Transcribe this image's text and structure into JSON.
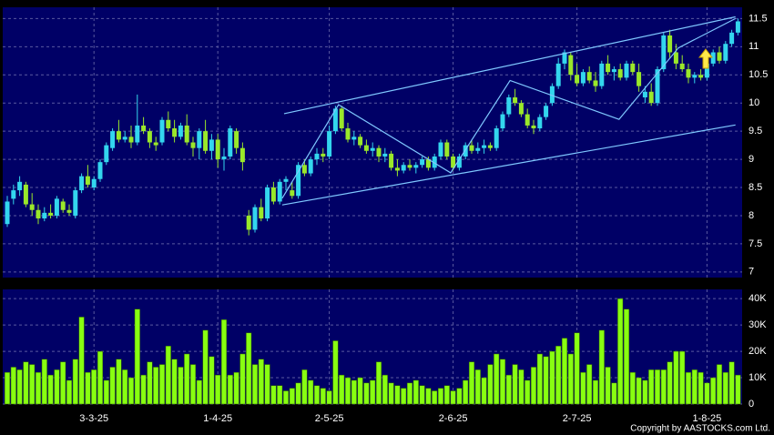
{
  "chart_data": {
    "type": "candlestick",
    "categories": [
      null,
      null,
      null,
      null,
      null,
      null,
      null,
      null,
      null,
      null,
      null,
      null,
      null,
      null,
      "3-3-25",
      null,
      null,
      null,
      null,
      null,
      null,
      null,
      null,
      null,
      null,
      null,
      null,
      null,
      null,
      null,
      null,
      null,
      null,
      null,
      "1-4-25",
      null,
      null,
      null,
      null,
      null,
      null,
      null,
      null,
      null,
      null,
      null,
      null,
      null,
      null,
      null,
      null,
      null,
      "2-5-25",
      null,
      null,
      null,
      null,
      null,
      null,
      null,
      null,
      null,
      null,
      null,
      null,
      null,
      null,
      null,
      null,
      null,
      null,
      null,
      "2-6-25",
      null,
      null,
      null,
      null,
      null,
      null,
      null,
      null,
      null,
      null,
      null,
      null,
      null,
      null,
      null,
      null,
      null,
      null,
      null,
      "2-7-25",
      null,
      null,
      null,
      null,
      null,
      null,
      null,
      null,
      null,
      null,
      null,
      null,
      null,
      null,
      null,
      null,
      null,
      null,
      null,
      null,
      "1-8-25",
      null,
      null,
      null,
      null,
      null
    ],
    "open": [
      7.85,
      8.3,
      8.45,
      8.55,
      8.2,
      8.1,
      7.95,
      8.05,
      8.0,
      8.25,
      8.1,
      8.0,
      8.45,
      8.7,
      8.5,
      8.65,
      8.95,
      9.2,
      9.5,
      9.35,
      9.4,
      9.3,
      9.6,
      9.5,
      9.3,
      9.3,
      9.7,
      9.55,
      9.4,
      9.6,
      9.3,
      9.2,
      9.5,
      9.15,
      9.35,
      9.0,
      9.05,
      9.5,
      9.2,
      8.0,
      7.75,
      8.15,
      7.95,
      8.5,
      8.25,
      8.6,
      8.45,
      8.35,
      8.9,
      8.75,
      9.0,
      9.1,
      9.05,
      9.5,
      9.9,
      9.55,
      9.35,
      9.4,
      9.25,
      9.15,
      9.2,
      9.05,
      9.1,
      8.85,
      8.8,
      8.9,
      8.85,
      8.9,
      9.0,
      8.85,
      9.05,
      9.3,
      9.05,
      8.85,
      9.05,
      9.25,
      9.15,
      9.2,
      9.25,
      9.2,
      9.55,
      9.8,
      10.1,
      10.0,
      9.8,
      9.6,
      9.55,
      9.75,
      10.0,
      10.3,
      10.7,
      10.85,
      10.5,
      10.35,
      10.55,
      10.4,
      10.3,
      10.7,
      10.55,
      10.6,
      10.45,
      10.7,
      10.55,
      10.1,
      10.2,
      10.0,
      10.6,
      11.2,
      10.9,
      10.7,
      10.6,
      10.45,
      10.5,
      10.45,
      10.7,
      10.9,
      10.75,
      11.05,
      11.25
    ],
    "high": [
      8.35,
      8.55,
      8.7,
      8.6,
      8.4,
      8.2,
      8.15,
      8.2,
      8.35,
      8.3,
      8.2,
      8.5,
      8.75,
      8.9,
      8.7,
      9.0,
      9.3,
      9.55,
      9.7,
      9.5,
      9.6,
      10.15,
      9.75,
      9.55,
      9.4,
      9.75,
      9.85,
      9.7,
      9.65,
      9.8,
      9.4,
      9.55,
      9.7,
      9.45,
      9.45,
      9.2,
      9.6,
      9.55,
      9.3,
      8.1,
      8.2,
      8.3,
      8.55,
      8.6,
      8.65,
      8.7,
      8.6,
      8.95,
      9.0,
      9.05,
      9.2,
      9.2,
      9.6,
      9.95,
      9.95,
      9.65,
      9.5,
      9.45,
      9.35,
      9.3,
      9.25,
      9.2,
      9.15,
      9.0,
      8.95,
      9.0,
      8.95,
      9.05,
      9.05,
      9.1,
      9.35,
      9.35,
      9.1,
      9.1,
      9.3,
      9.35,
      9.3,
      9.35,
      9.3,
      9.6,
      9.85,
      10.15,
      10.25,
      10.05,
      9.9,
      9.7,
      9.8,
      10.0,
      10.35,
      10.8,
      10.95,
      10.9,
      10.7,
      10.6,
      10.65,
      10.55,
      10.75,
      10.85,
      10.65,
      10.7,
      10.75,
      10.75,
      10.7,
      10.3,
      10.35,
      10.65,
      11.25,
      11.3,
      11.05,
      10.85,
      10.7,
      10.55,
      10.6,
      10.75,
      10.95,
      11.0,
      11.1,
      11.3,
      11.5
    ],
    "low": [
      7.8,
      8.2,
      8.35,
      8.15,
      8.0,
      7.85,
      7.9,
      7.95,
      7.95,
      8.05,
      8.0,
      7.95,
      8.4,
      8.5,
      8.45,
      8.6,
      8.9,
      9.15,
      9.3,
      9.3,
      9.2,
      9.25,
      9.45,
      9.2,
      9.15,
      9.25,
      9.5,
      9.3,
      9.35,
      9.25,
      9.05,
      9.0,
      9.1,
      9.0,
      8.85,
      8.8,
      9.0,
      9.1,
      8.8,
      7.65,
      7.7,
      7.9,
      7.9,
      8.2,
      8.2,
      8.45,
      8.3,
      8.3,
      8.7,
      8.7,
      8.9,
      8.95,
      9.0,
      9.45,
      9.5,
      9.3,
      9.25,
      9.2,
      9.1,
      9.05,
      8.95,
      8.95,
      8.8,
      8.7,
      8.75,
      8.8,
      8.75,
      8.85,
      8.8,
      8.8,
      9.0,
      9.0,
      8.8,
      8.8,
      9.0,
      9.1,
      9.1,
      9.1,
      9.15,
      9.15,
      9.5,
      9.75,
      9.95,
      9.75,
      9.55,
      9.45,
      9.5,
      9.7,
      9.95,
      10.25,
      10.6,
      10.4,
      10.3,
      10.3,
      10.35,
      10.2,
      10.25,
      10.5,
      10.4,
      10.4,
      10.4,
      10.5,
      10.2,
      10.0,
      9.95,
      9.95,
      10.55,
      10.8,
      10.6,
      10.55,
      10.35,
      10.35,
      10.4,
      10.4,
      10.65,
      10.7,
      10.7,
      11.0,
      11.2
    ],
    "close": [
      8.25,
      8.45,
      8.6,
      8.2,
      8.1,
      7.95,
      8.05,
      8.0,
      8.3,
      8.1,
      8.05,
      8.45,
      8.7,
      8.55,
      8.65,
      8.95,
      9.25,
      9.5,
      9.35,
      9.4,
      9.3,
      9.6,
      9.5,
      9.3,
      9.25,
      9.7,
      9.55,
      9.4,
      9.6,
      9.3,
      9.2,
      9.5,
      9.15,
      9.35,
      9.0,
      9.05,
      9.55,
      9.2,
      8.95,
      7.75,
      8.15,
      7.95,
      8.5,
      8.25,
      8.6,
      8.65,
      8.35,
      8.9,
      8.75,
      9.0,
      9.1,
      9.05,
      9.5,
      9.9,
      9.55,
      9.35,
      9.4,
      9.25,
      9.15,
      9.2,
      9.05,
      9.1,
      8.85,
      8.8,
      8.9,
      8.85,
      8.9,
      9.0,
      8.85,
      9.05,
      9.3,
      9.05,
      8.85,
      9.05,
      9.25,
      9.15,
      9.2,
      9.25,
      9.2,
      9.55,
      9.8,
      10.1,
      10.0,
      9.8,
      9.6,
      9.55,
      9.75,
      9.95,
      10.3,
      10.7,
      10.9,
      10.5,
      10.35,
      10.55,
      10.4,
      10.3,
      10.7,
      10.55,
      10.6,
      10.45,
      10.7,
      10.55,
      10.3,
      10.2,
      10.0,
      10.6,
      11.2,
      10.9,
      10.7,
      10.6,
      10.45,
      10.5,
      10.45,
      10.7,
      10.9,
      10.75,
      11.05,
      11.25,
      11.45
    ],
    "volume": [
      12000,
      14000,
      13000,
      16000,
      15000,
      12000,
      17000,
      11000,
      13000,
      16000,
      9000,
      17000,
      33000,
      12000,
      13000,
      20000,
      9000,
      14000,
      17000,
      13000,
      10000,
      36000,
      11000,
      16000,
      14000,
      15000,
      22000,
      17000,
      14000,
      19000,
      15000,
      9000,
      28000,
      18000,
      11000,
      32000,
      11000,
      12000,
      19000,
      27000,
      15000,
      17000,
      15000,
      7000,
      7000,
      5000,
      6000,
      8000,
      13000,
      9000,
      7000,
      6000,
      5000,
      24000,
      11000,
      10000,
      9000,
      10000,
      8000,
      9000,
      16000,
      11000,
      8000,
      7000,
      6000,
      8000,
      9000,
      7000,
      6000,
      5000,
      6000,
      7000,
      5000,
      6000,
      9000,
      16000,
      13000,
      10000,
      15000,
      19000,
      17000,
      11000,
      15000,
      13000,
      9000,
      14000,
      19000,
      18000,
      20000,
      22000,
      25000,
      19000,
      27000,
      12000,
      15000,
      9000,
      28000,
      14000,
      8000,
      40000,
      36000,
      12000,
      10000,
      9000,
      13000,
      13000,
      13000,
      16000,
      20000,
      20000,
      12000,
      13000,
      12000,
      8000,
      10000,
      15000,
      12000,
      16000,
      11000
    ],
    "ylim": [
      6.9,
      11.7
    ],
    "yticks": [
      7,
      7.5,
      8,
      8.5,
      9,
      9.5,
      10,
      10.5,
      11,
      11.5
    ],
    "volume_ylim": [
      0,
      43500
    ],
    "volume_yticks": [
      0,
      {
        "value": 10000,
        "label": "10K"
      },
      {
        "value": 20000,
        "label": "20K"
      },
      {
        "value": 30000,
        "label": "30K"
      },
      {
        "value": 40000,
        "label": "40K"
      }
    ],
    "up_color": "#33d6ee",
    "down_color": "#9ae82a",
    "volume_color": "#88ff11",
    "trendline_color": "#7fc8ff",
    "grid": true,
    "trendlines": [
      {
        "x": [
          44.7,
          117.6
        ],
        "y": [
          9.81,
          11.53
        ]
      },
      {
        "x": [
          44.4,
          117.6
        ],
        "y": [
          8.19,
          9.61
        ]
      },
      {
        "x": [
          44.4,
          53.5,
          71.6,
          81.2,
          98.8,
          108.4,
          117.6
        ],
        "y": [
          8.31,
          9.97,
          8.76,
          10.4,
          9.71,
          10.98,
          11.5
        ]
      }
    ],
    "copyright": "Copyright by AASTOCKS.com Ltd."
  }
}
